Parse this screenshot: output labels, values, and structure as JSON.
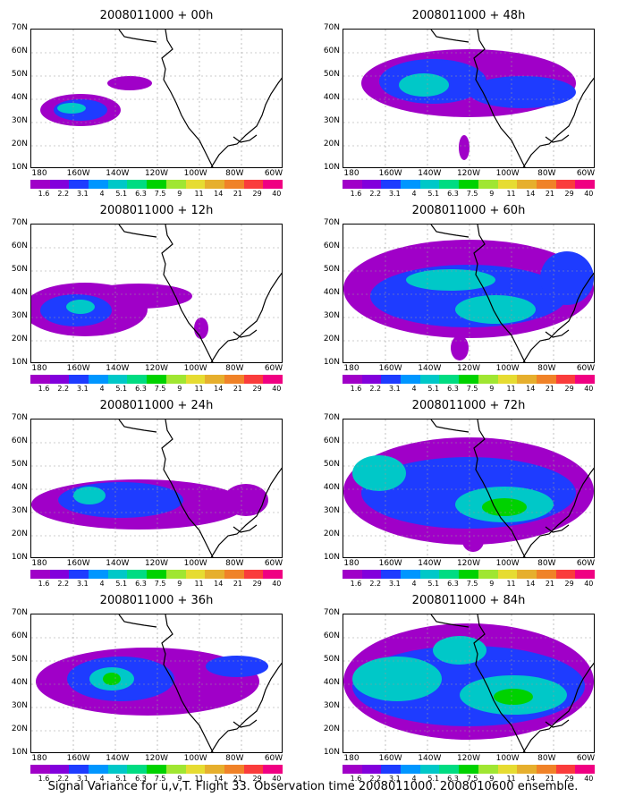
{
  "panels": [
    {
      "title": "2008011000 + 00h"
    },
    {
      "title": "2008011000 + 48h"
    },
    {
      "title": "2008011000 + 12h"
    },
    {
      "title": "2008011000 + 60h"
    },
    {
      "title": "2008011000 + 24h"
    },
    {
      "title": "2008011000 + 72h"
    },
    {
      "title": "2008011000 + 36h"
    },
    {
      "title": "2008011000 + 84h"
    }
  ],
  "lat_labels": [
    "70N",
    "60N",
    "50N",
    "40N",
    "30N",
    "20N",
    "10N"
  ],
  "lon_labels": [
    "180",
    "160W",
    "140W",
    "120W",
    "100W",
    "80W",
    "60W"
  ],
  "colorbar": {
    "labels": [
      "1.6",
      "2.2",
      "3.1",
      "4",
      "5.1",
      "6.3",
      "7.5",
      "9",
      "11",
      "14",
      "21",
      "29",
      "40"
    ],
    "colors": [
      "#a000c8",
      "#8200dc",
      "#1e3cff",
      "#0096ff",
      "#00c8c8",
      "#00dc82",
      "#00d200",
      "#a0e632",
      "#e6dc32",
      "#e6af2d",
      "#f08228",
      "#fa3c3c",
      "#f00082"
    ]
  },
  "caption": "Signal Variance for u,v,T. Flight 33. Observation time 2008011000. 2008010600 ensemble.",
  "chart_data": {
    "type": "heatmap",
    "variable": "Signal Variance for u,v,T",
    "lat_range": [
      "10N",
      "70N"
    ],
    "lon_range": [
      "170E",
      "60W"
    ],
    "grid": true,
    "levels": [
      1.6,
      2.2,
      3.1,
      4,
      5.1,
      6.3,
      7.5,
      9,
      11,
      14,
      21,
      29,
      40
    ]
  }
}
